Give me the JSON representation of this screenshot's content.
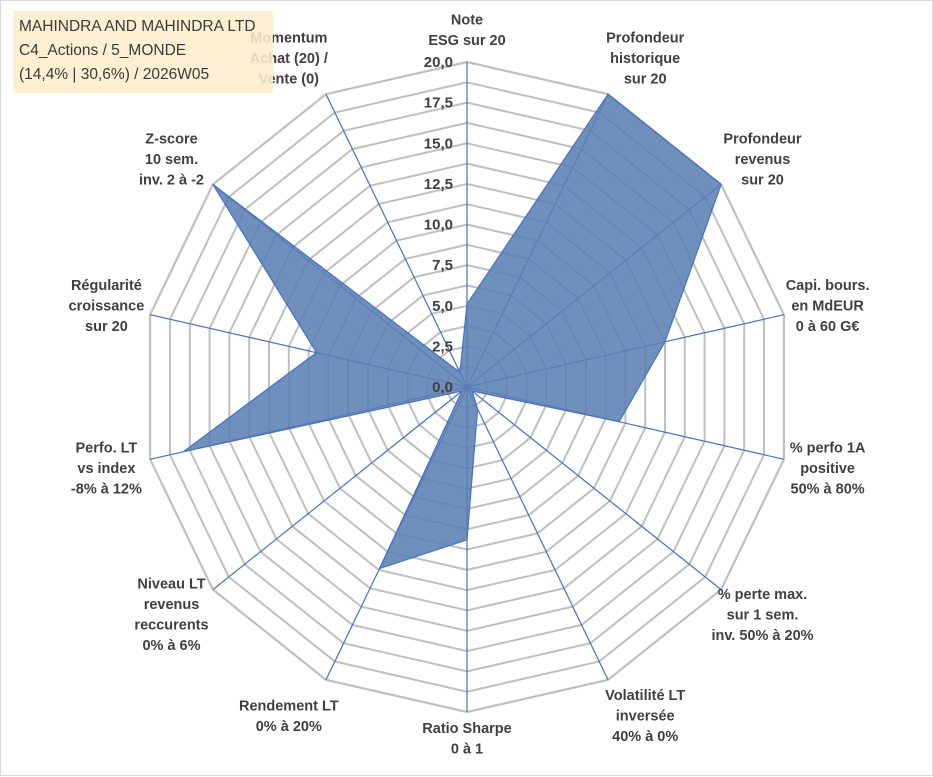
{
  "colors": {
    "grid": "#bfbfbf",
    "spoke": "#4472c4",
    "series_fill": "#5b80b4",
    "series_stroke": "#4472c4",
    "label": "#404040",
    "title_bg": "#fdeecc"
  },
  "title_box": {
    "line1": "MAHINDRA AND MAHINDRA LTD",
    "line2": "C4_Actions / 5_MONDE",
    "line3": "(14,4% | 30,6%) / 2026W05"
  },
  "chart_data": {
    "type": "radar",
    "title": "MAHINDRA AND MAHINDRA LTD",
    "r_range": [
      0,
      20
    ],
    "ticks": [
      "0,0",
      "2,5",
      "5,0",
      "7,5",
      "10,0",
      "12,5",
      "15,0",
      "17,5",
      "20,0"
    ],
    "tick_values": [
      0,
      2.5,
      5,
      7.5,
      10,
      12.5,
      15,
      17.5,
      20
    ],
    "grid_rings": 16,
    "categories": [
      [
        "Note",
        "ESG sur 20"
      ],
      [
        "Profondeur",
        "historique",
        "sur 20"
      ],
      [
        "Profondeur",
        "revenus",
        "sur 20"
      ],
      [
        "Capi. bours.",
        "en MdEUR",
        "0 à 60 G€"
      ],
      [
        "% perfo 1A",
        "positive",
        "50% à 80%"
      ],
      [
        "% perte max.",
        "sur 1 sem.",
        "inv. 50% à 20%"
      ],
      [
        "Volatilité LT",
        "inversée",
        "40% à 0%"
      ],
      [
        "Ratio Sharpe",
        "0 à 1"
      ],
      [
        "Rendement LT",
        "0% à 20%"
      ],
      [
        "Niveau LT",
        "revenus",
        "reccurents",
        "0% à 6%"
      ],
      [
        "Perfo. LT",
        "vs index",
        "-8% à 12%"
      ],
      [
        "Régularité",
        "croissance",
        "sur 20"
      ],
      [
        "Z-score",
        "10 sem.",
        "inv. 2 à -2"
      ],
      [
        "Momentum",
        "Achat (20) /",
        "Vente (0)"
      ]
    ],
    "series": [
      {
        "name": "MAHINDRA AND MAHINDRA LTD",
        "values": [
          5.1,
          20.0,
          20.0,
          12.5,
          9.6,
          0.4,
          1.5,
          9.4,
          12.4,
          0.4,
          17.9,
          9.5,
          20.0,
          1.0
        ]
      }
    ]
  }
}
